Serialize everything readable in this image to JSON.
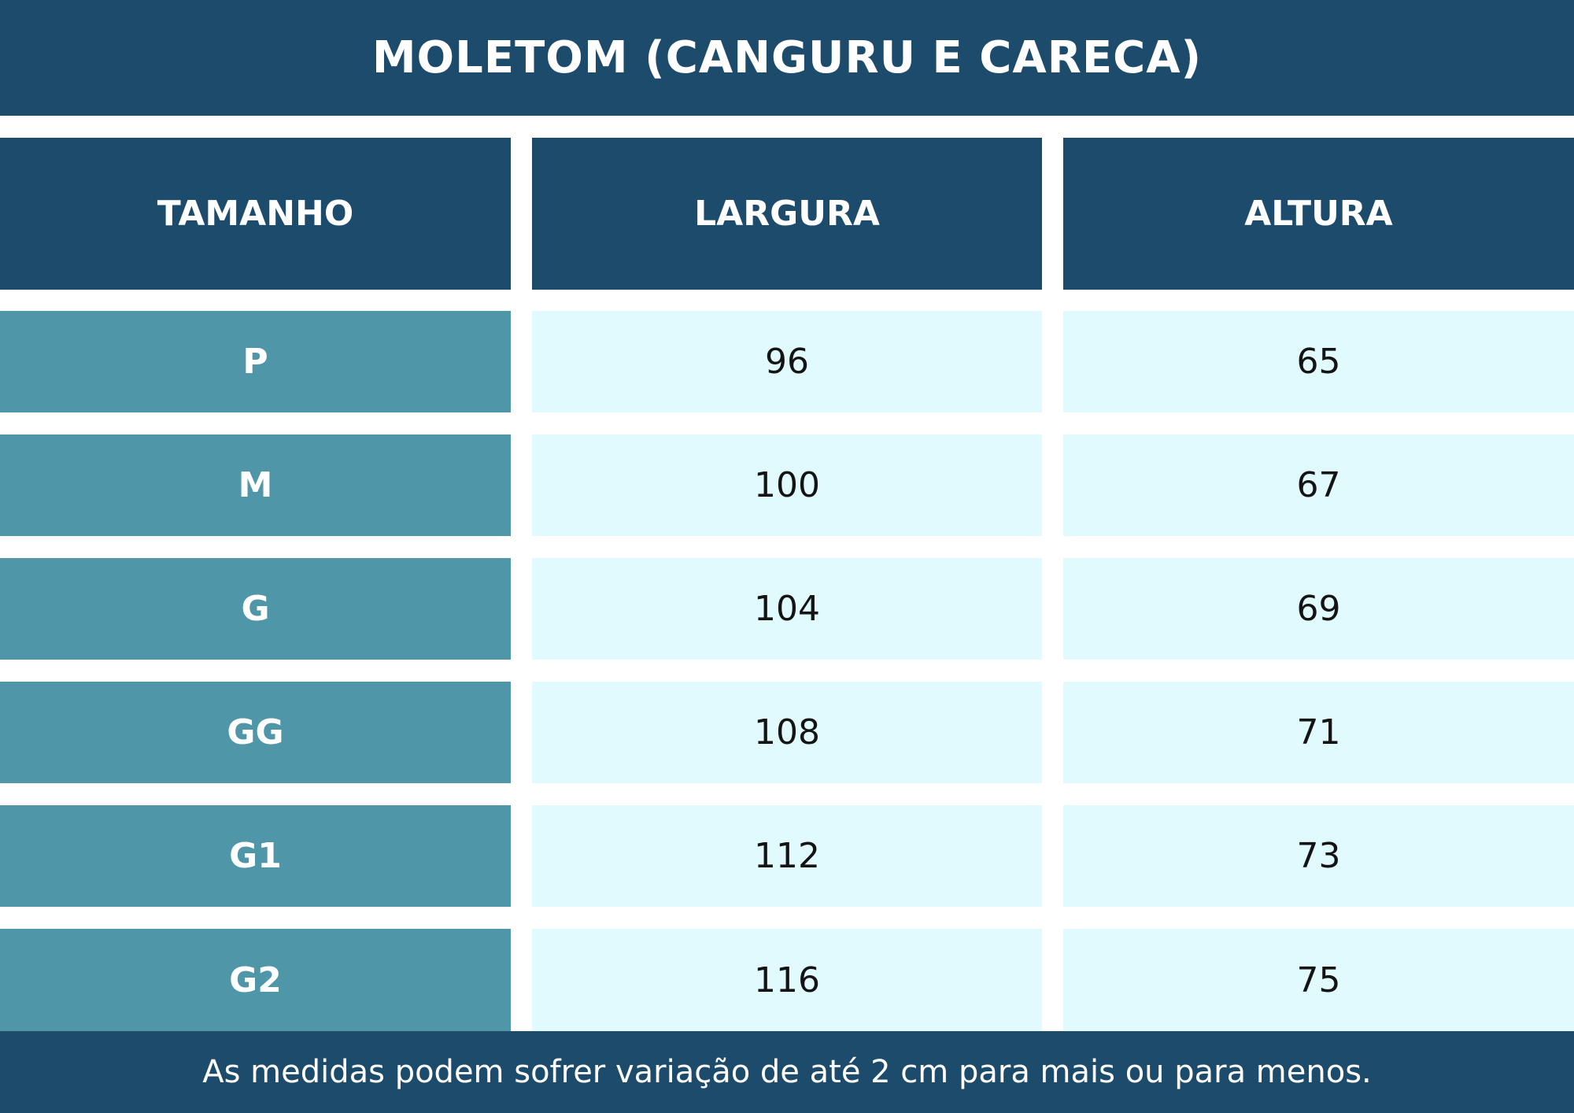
{
  "title": "MOLETOM (CANGURU E CARECA)",
  "table": {
    "headers": [
      "TAMANHO",
      "LARGURA",
      "ALTURA"
    ],
    "rows": [
      {
        "size": "P",
        "largura": "96",
        "altura": "65"
      },
      {
        "size": "M",
        "largura": "100",
        "altura": "67"
      },
      {
        "size": "G",
        "largura": "104",
        "altura": "69"
      },
      {
        "size": "GG",
        "largura": "108",
        "altura": "71"
      },
      {
        "size": "G1",
        "largura": "112",
        "altura": "73"
      },
      {
        "size": "G2",
        "largura": "116",
        "altura": "75"
      }
    ]
  },
  "footer": "As medidas podem sofrer variação de até 2 cm para mais ou para menos.",
  "colors": {
    "header_bg": "#1d4b6c",
    "size_cell_bg": "#5096a9",
    "value_cell_bg": "#e0fafe",
    "background": "#ffffff"
  }
}
